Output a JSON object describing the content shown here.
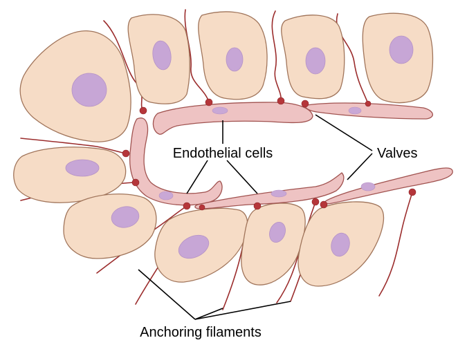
{
  "labels": {
    "endothelial": "Endothelial cells",
    "valves": "Valves",
    "anchoring": "Anchoring filaments"
  },
  "colors": {
    "tissue_cell": "#f6dcc6",
    "nucleus": "#c7a6d6",
    "endothelial_cell": "#eec3c3",
    "anchoring_filament": "#9b2c2c"
  }
}
